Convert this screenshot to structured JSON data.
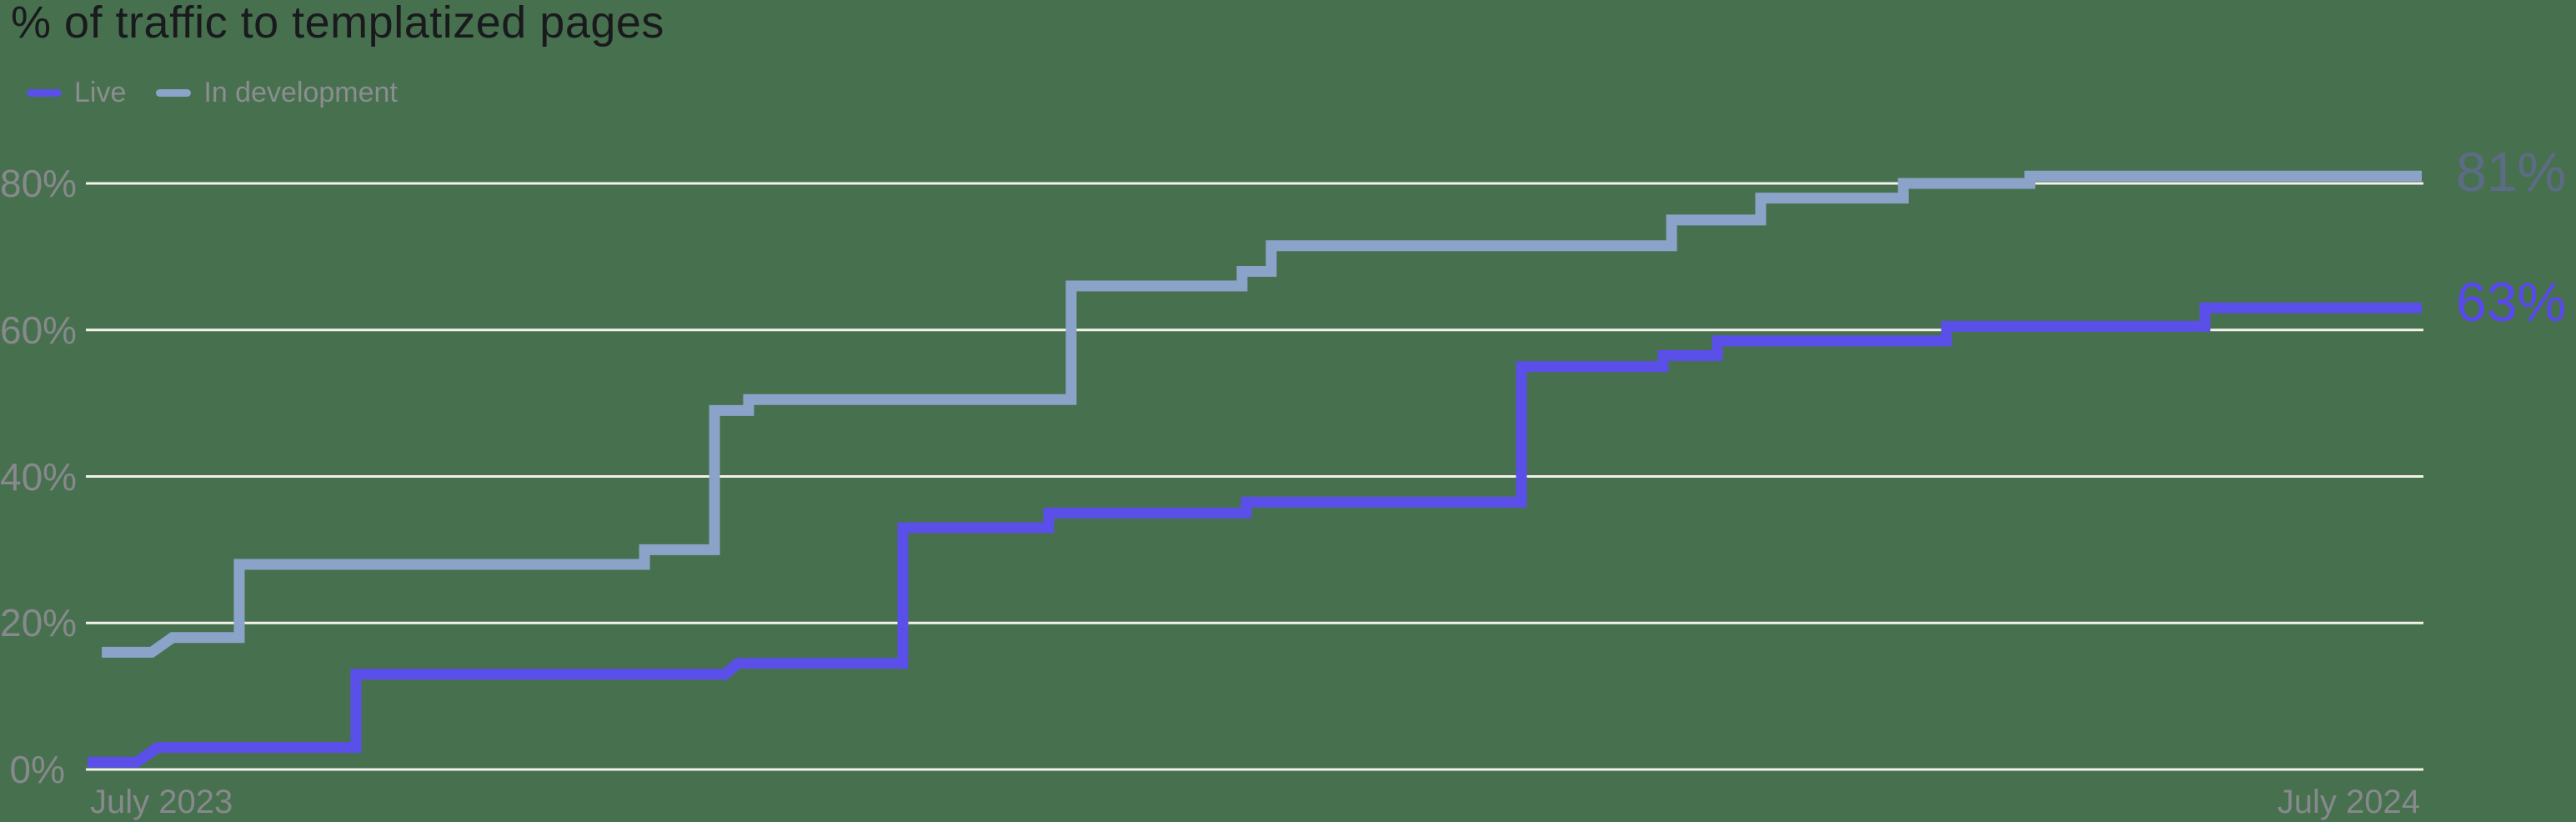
{
  "title": "% of traffic to templatized pages",
  "colors": {
    "background": "#47714E",
    "title_text": "#1A1A1E",
    "axis_text": "#87898C",
    "legend_text": "#8B8D90",
    "gridline": "#F4F1EA",
    "live": "#5A4FE8",
    "live_label": "#5948EF",
    "in_development": "#8CA3C9",
    "in_development_label": "#5D6C86"
  },
  "legend": {
    "items": [
      {
        "label": "Live",
        "color": "#5A4FE8"
      },
      {
        "label": "In development",
        "color": "#8CA3C9"
      }
    ]
  },
  "chart_data": {
    "type": "line",
    "subtype": "step",
    "title": "% of traffic to templatized pages",
    "grid": "horizontal-on",
    "legend_position": "top-left",
    "x_axis": {
      "start_label": "July 2023",
      "end_label": "July 2024",
      "range": [
        "July 2023",
        "July 2024"
      ]
    },
    "y_axis": {
      "tick_labels": [
        "0%",
        "20%",
        "40%",
        "60%",
        "80%"
      ],
      "tick_values": [
        0,
        20,
        40,
        60,
        80
      ],
      "unit": "%",
      "ylim": [
        0,
        88
      ]
    },
    "series": [
      {
        "name": "Live",
        "color": "#5A4FE8",
        "final_value": 63,
        "end_label": "63%",
        "end_label_color": "#5948EF",
        "points": [
          [
            0.0,
            1
          ],
          [
            0.021,
            1
          ],
          [
            0.03,
            3
          ],
          [
            0.115,
            3
          ],
          [
            0.115,
            13
          ],
          [
            0.2732,
            13
          ],
          [
            0.2786,
            14.5
          ],
          [
            0.3493,
            14.5
          ],
          [
            0.3493,
            33
          ],
          [
            0.4118,
            33
          ],
          [
            0.4118,
            35
          ],
          [
            0.4964,
            35
          ],
          [
            0.4964,
            36.5
          ],
          [
            0.6143,
            36.5
          ],
          [
            0.6143,
            55
          ],
          [
            0.675,
            55
          ],
          [
            0.675,
            56.5
          ],
          [
            0.6982,
            56.5
          ],
          [
            0.6982,
            58.5
          ],
          [
            0.7964,
            58.5
          ],
          [
            0.7964,
            60.5
          ],
          [
            0.9071,
            60.5
          ],
          [
            0.9071,
            63
          ],
          [
            1.0,
            63
          ]
        ]
      },
      {
        "name": "In development",
        "color": "#8CA3C9",
        "final_value": 81,
        "end_label": "81%",
        "end_label_color": "#5D6C86",
        "points": [
          [
            0.0061,
            16
          ],
          [
            0.0275,
            16
          ],
          [
            0.0364,
            18
          ],
          [
            0.065,
            18
          ],
          [
            0.065,
            28
          ],
          [
            0.2386,
            28
          ],
          [
            0.2386,
            30
          ],
          [
            0.2686,
            30
          ],
          [
            0.2686,
            49
          ],
          [
            0.2832,
            49
          ],
          [
            0.2832,
            50.5
          ],
          [
            0.4214,
            50.5
          ],
          [
            0.4214,
            66
          ],
          [
            0.4946,
            66
          ],
          [
            0.4946,
            68
          ],
          [
            0.5071,
            68
          ],
          [
            0.5071,
            71.5
          ],
          [
            0.6786,
            71.5
          ],
          [
            0.6786,
            75
          ],
          [
            0.7168,
            75
          ],
          [
            0.7168,
            78
          ],
          [
            0.7779,
            78
          ],
          [
            0.7779,
            80
          ],
          [
            0.8321,
            80
          ],
          [
            0.8321,
            81
          ],
          [
            1.0,
            81
          ]
        ]
      }
    ]
  }
}
